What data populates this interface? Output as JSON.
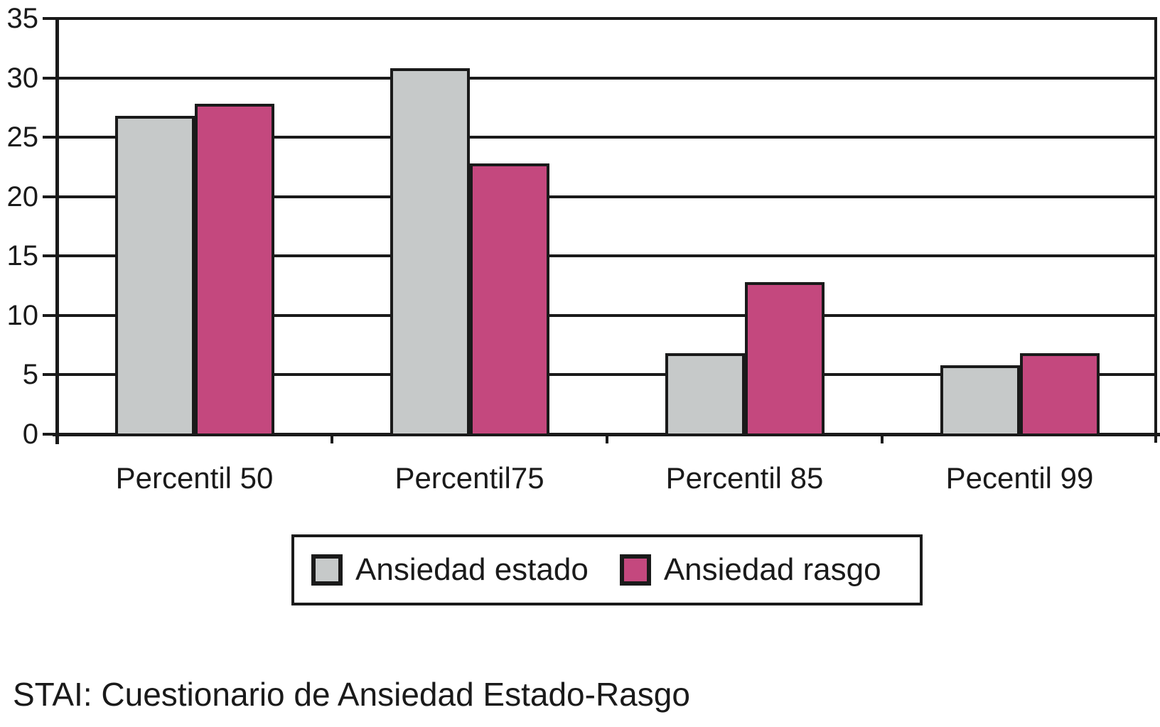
{
  "chart_data": {
    "type": "bar",
    "categories": [
      "Percentil 50",
      "Percentil75",
      "Percentil 85",
      "Pecentil 99"
    ],
    "series": [
      {
        "name": "Ansiedad estado",
        "color": "#C6C9C9",
        "values": [
          27,
          31,
          7,
          6
        ]
      },
      {
        "name": "Ansiedad rasgo",
        "color": "#C4487E",
        "values": [
          28,
          23,
          13,
          7
        ]
      }
    ],
    "ylim": [
      0,
      35
    ],
    "yticks": [
      0,
      5,
      10,
      15,
      20,
      25,
      30,
      35
    ],
    "xlabel": "",
    "ylabel": "",
    "title": "",
    "grid": "horizontal",
    "legend_position": "bottom-center",
    "footnote": "STAI: Cuestionario de Ansiedad Estado-Rasgo",
    "style": {
      "line_color": "#1a1a1a",
      "background": "#ffffff",
      "bar_border_color": "#1a1a1a"
    }
  }
}
